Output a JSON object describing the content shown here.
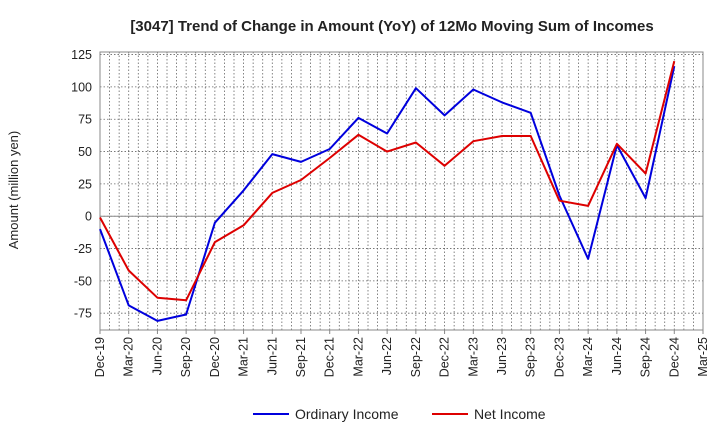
{
  "chart_data": {
    "type": "line",
    "title": "[3047]  Trend of Change in Amount (YoY) of 12Mo Moving Sum of Incomes",
    "xlabel": "",
    "ylabel": "Amount (million yen)",
    "ylim": [
      -88,
      127
    ],
    "yticks": [
      125,
      100,
      75,
      50,
      25,
      0,
      -25,
      -50,
      -75
    ],
    "ytick_labels": [
      "125",
      "100",
      "75",
      "50",
      "25",
      "0",
      "-25",
      "-50",
      "-75"
    ],
    "categories": [
      "Dec-19",
      "Mar-20",
      "Jun-20",
      "Sep-20",
      "Dec-20",
      "Mar-21",
      "Jun-21",
      "Sep-21",
      "Dec-21",
      "Mar-22",
      "Jun-22",
      "Sep-22",
      "Dec-22",
      "Mar-23",
      "Jun-23",
      "Sep-23",
      "Dec-23",
      "Mar-24",
      "Jun-24",
      "Sep-24",
      "Dec-24",
      "Mar-25"
    ],
    "grid": true,
    "legend_position": "bottom",
    "series": [
      {
        "name": "Ordinary Income",
        "color": "#0000dd",
        "values": [
          -10,
          -69,
          -81,
          -76,
          -5,
          20,
          48,
          42,
          52,
          76,
          64,
          99,
          78,
          98,
          88,
          80,
          16,
          -33,
          55,
          14,
          116,
          null
        ]
      },
      {
        "name": "Net Income",
        "color": "#dd0000",
        "values": [
          -1,
          -42,
          -63,
          -65,
          -20,
          -7,
          18,
          28,
          45,
          63,
          50,
          57,
          39,
          58,
          62,
          62,
          12,
          8,
          56,
          33,
          120,
          null
        ]
      }
    ]
  }
}
